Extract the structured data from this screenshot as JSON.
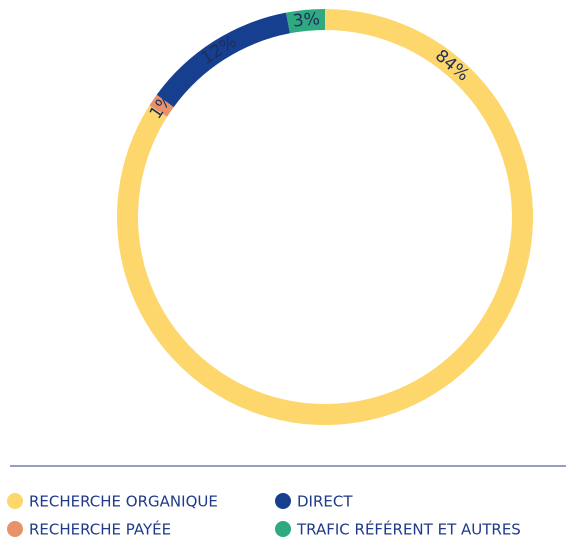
{
  "chart_data": {
    "type": "donut",
    "categories": [
      "RECHERCHE ORGANIQUE",
      "RECHERCHE PAYÉE",
      "DIRECT",
      "TRAFIC RÉFÉRENT ET AUTRES"
    ],
    "values": [
      84,
      1,
      12,
      3
    ],
    "value_labels": [
      "84%",
      "1%",
      "12%",
      "3%"
    ],
    "colors": [
      "#fdd76b",
      "#e8926b",
      "#163f8f",
      "#2fa97f"
    ]
  }
}
